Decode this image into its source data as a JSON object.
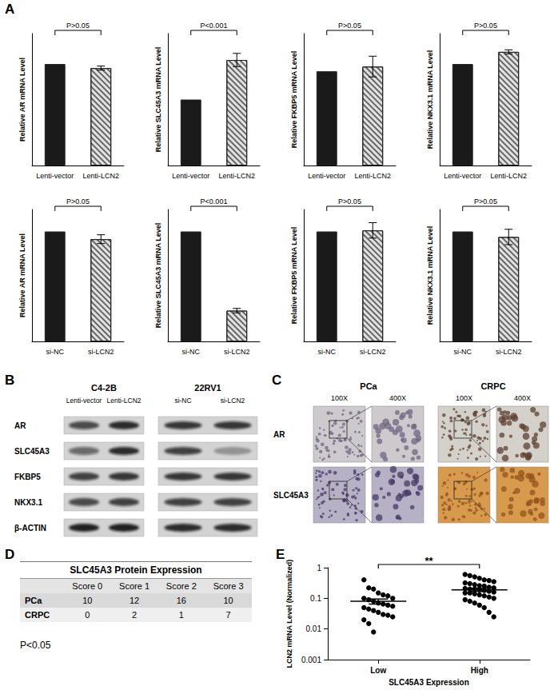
{
  "panel_labels": [
    "A",
    "B",
    "C",
    "D",
    "E"
  ],
  "chart_data": [
    {
      "type": "bar",
      "ylabel": "Relative AR mRNA Level",
      "categories": [
        "Lenti-vector",
        "Lenti-LCN2"
      ],
      "values": [
        1,
        0.96
      ],
      "errors": [
        0,
        0.02
      ],
      "colors": [
        "#1a1a1a",
        "#e2e2e2"
      ],
      "ylim": [
        0,
        1.3
      ],
      "tick_labels": "x",
      "annotation": "P>0.05"
    },
    {
      "type": "bar",
      "ylabel": "Relative SLC45A3 mRNA Level",
      "categories": [
        "Lenti-vector",
        "Lenti-LCN2"
      ],
      "values": [
        1,
        1.6
      ],
      "errors": [
        0,
        0.1
      ],
      "colors": [
        "#1a1a1a",
        "#e2e2e2"
      ],
      "ylim": [
        0,
        2
      ],
      "tick_labels": "x",
      "annotation": "P<0.001"
    },
    {
      "type": "bar",
      "ylabel": "Relative FKBP5 mRNA Level",
      "categories": [
        "Lenti-vector",
        "Lenti-LCN2"
      ],
      "values": [
        1,
        1.05
      ],
      "errors": [
        0,
        0.11
      ],
      "colors": [
        "#1a1a1a",
        "#e2e2e2"
      ],
      "ylim": [
        0,
        1.4
      ],
      "tick_labels": "x",
      "annotation": "P>0.05"
    },
    {
      "type": "bar",
      "ylabel": "Relative NKX3.1 mRNA Level",
      "categories": [
        "Lenti-vector",
        "Lenti-LCN2"
      ],
      "values": [
        1,
        1.12
      ],
      "errors": [
        0,
        0.02
      ],
      "colors": [
        "#1a1a1a",
        "#e2e2e2"
      ],
      "ylim": [
        0,
        1.3
      ],
      "tick_labels": "x",
      "annotation": "P>0.05"
    },
    {
      "type": "bar",
      "ylabel": "Relative AR mRNA Level",
      "categories": [
        "si-NC",
        "si-LCN2"
      ],
      "values": [
        1,
        0.93
      ],
      "errors": [
        0,
        0.04
      ],
      "colors": [
        "#1a1a1a",
        "#e2e2e2"
      ],
      "ylim": [
        0,
        1.2
      ],
      "tick_labels": "x",
      "annotation": "P>0.05"
    },
    {
      "type": "bar",
      "ylabel": "Relative SLC45A3 mRNA Level",
      "categories": [
        "si-NC",
        "si-LCN2"
      ],
      "values": [
        1,
        0.28
      ],
      "errors": [
        0,
        0.02
      ],
      "colors": [
        "#1a1a1a",
        "#e2e2e2"
      ],
      "ylim": [
        0,
        1.2
      ],
      "tick_labels": "x",
      "annotation": "P<0.001"
    },
    {
      "type": "bar",
      "ylabel": "Relative FKBP5 mRNA Level",
      "categories": [
        "si-NC",
        "si-LCN2"
      ],
      "values": [
        1,
        1.01
      ],
      "errors": [
        0,
        0.07
      ],
      "colors": [
        "#1a1a1a",
        "#e2e2e2"
      ],
      "ylim": [
        0,
        1.2
      ],
      "tick_labels": "x",
      "annotation": "P>0.05"
    },
    {
      "type": "bar",
      "ylabel": "Relative NKX3.1 mRNA Level",
      "categories": [
        "si-NC",
        "si-LCN2"
      ],
      "values": [
        1,
        0.95
      ],
      "errors": [
        0,
        0.07
      ],
      "colors": [
        "#1a1a1a",
        "#e2e2e2"
      ],
      "ylim": [
        0,
        1.2
      ],
      "tick_labels": "x",
      "annotation": "P>0.05"
    },
    {
      "type": "scatter",
      "xlabel": "SLC45A3 Expression",
      "ylabel": "LCN2 mRNA Level (Normalized)",
      "categories": [
        "Low",
        "High"
      ],
      "values": [
        [
          0.4,
          0.22,
          0.2,
          0.15,
          0.13,
          0.12,
          0.1,
          0.1,
          0.09,
          0.08,
          0.07,
          0.065,
          0.06,
          0.055,
          0.05,
          0.045,
          0.04,
          0.035,
          0.03,
          0.028,
          0.025,
          0.02,
          0.015,
          0.008
        ],
        [
          0.6,
          0.55,
          0.5,
          0.45,
          0.4,
          0.38,
          0.35,
          0.32,
          0.3,
          0.28,
          0.26,
          0.25,
          0.23,
          0.22,
          0.21,
          0.2,
          0.2,
          0.19,
          0.18,
          0.17,
          0.16,
          0.15,
          0.15,
          0.14,
          0.13,
          0.12,
          0.11,
          0.1,
          0.09,
          0.08,
          0.07,
          0.06,
          0.05,
          0.035,
          0.025
        ]
      ],
      "mean": [
        0.08,
        0.19
      ],
      "sem": [
        0.015,
        0.022
      ],
      "color": "#000000",
      "marker": "circle",
      "log": "y",
      "ylim": [
        0.001,
        1
      ],
      "yticks": [
        0.001,
        0.01,
        0.1,
        1
      ],
      "annotation": "**"
    }
  ],
  "blot": {
    "groups": [
      {
        "title": "C4-2B",
        "lanes": [
          "Lenti-vector",
          "Lenti-LCN2"
        ]
      },
      {
        "title": "22RV1",
        "lanes": [
          "si-NC",
          "si-LCN2"
        ]
      }
    ],
    "rows": [
      {
        "label": "AR",
        "intensity": [
          0.7,
          0.85,
          0.8,
          0.8
        ]
      },
      {
        "label": "SLC45A3",
        "intensity": [
          0.55,
          0.85,
          0.75,
          0.3
        ]
      },
      {
        "label": "FKBP5",
        "intensity": [
          0.75,
          0.8,
          0.8,
          0.8
        ]
      },
      {
        "label": "NKX3.1",
        "intensity": [
          0.7,
          0.75,
          0.75,
          0.75
        ]
      },
      {
        "label": "β-ACTIN",
        "intensity": [
          0.9,
          0.9,
          0.85,
          0.85
        ]
      }
    ]
  },
  "ihc": {
    "columns": [
      "PCa",
      "CRPC"
    ],
    "magnifications": [
      "100X",
      "400X"
    ],
    "rows": [
      "AR",
      "SLC45A3"
    ]
  },
  "table": {
    "title": "SLC45A3 Protein Expression",
    "header": [
      "Score 0",
      "Score 1",
      "Score 2",
      "Score 3"
    ],
    "rows": [
      {
        "label": "PCa",
        "cells": [
          10,
          12,
          16,
          10
        ]
      },
      {
        "label": "CRPC",
        "cells": [
          0,
          2,
          1,
          7
        ]
      }
    ],
    "note": "P<0.05"
  }
}
